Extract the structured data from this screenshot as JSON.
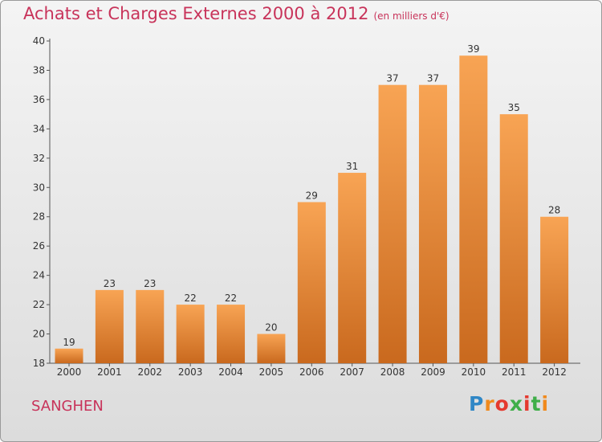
{
  "title": "Achats et Charges Externes 2000 à 2012",
  "subtitle": "(en milliers d'€)",
  "commune": "SANGHEN",
  "logo_text": "Proxiti",
  "colors": {
    "title": "#c8335a",
    "bar_top": "#f8a454",
    "bar_bottom": "#c9691e",
    "logo_letters": [
      "#2f87c6",
      "#f08a1d",
      "#e53a2f",
      "#3fae49",
      "#e53a2f",
      "#3fae49",
      "#f08a1d"
    ]
  },
  "chart_data": {
    "type": "bar",
    "title": "Achats et Charges Externes 2000 à 2012",
    "subtitle": "(en milliers d'€)",
    "categories": [
      "2000",
      "2001",
      "2002",
      "2003",
      "2004",
      "2005",
      "2006",
      "2007",
      "2008",
      "2009",
      "2010",
      "2011",
      "2012"
    ],
    "values": [
      19,
      23,
      23,
      22,
      22,
      20,
      29,
      31,
      37,
      37,
      39,
      35,
      28
    ],
    "ylim": [
      18,
      40
    ],
    "yticks": [
      18,
      20,
      22,
      24,
      26,
      28,
      30,
      32,
      34,
      36,
      38,
      40
    ],
    "grid": false,
    "data_labels": true
  }
}
